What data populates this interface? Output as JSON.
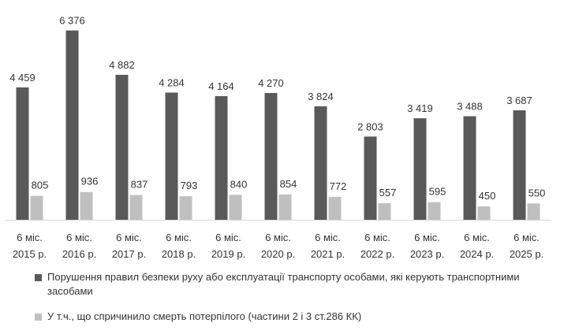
{
  "chart_data": {
    "type": "bar",
    "categories": [
      "6 міс. 2015 р.",
      "6 міс. 2016 р.",
      "6 міс. 2017 р.",
      "6 міс. 2018 р.",
      "6 міс. 2019 р.",
      "6 міс. 2020 р.",
      "6 міс. 2021 р.",
      "6 міс. 2022 р.",
      "6 міс. 2023 р.",
      "6 міс. 2024 р.",
      "6 міс. 2025 р."
    ],
    "category_lines": [
      [
        "6 міс.",
        "2015 р."
      ],
      [
        "6 міс.",
        "2016 р."
      ],
      [
        "6 міс.",
        "2017 р."
      ],
      [
        "6 міс.",
        "2018 р."
      ],
      [
        "6 міс.",
        "2019 р."
      ],
      [
        "6 міс.",
        "2020 р."
      ],
      [
        "6 міс.",
        "2021 р."
      ],
      [
        "6 міс.",
        "2022 р."
      ],
      [
        "6 міс.",
        "2023 р."
      ],
      [
        "6 міс.",
        "2024 р."
      ],
      [
        "6 міс.",
        "2025 р."
      ]
    ],
    "series": [
      {
        "name": "Порушення  правил безпеки руху або експлуатації транспорту особами, які керують транспортними засобами",
        "values": [
          4459,
          6376,
          4882,
          4284,
          4164,
          4270,
          3824,
          2803,
          3419,
          3488,
          3687
        ],
        "labels": [
          "4 459",
          "6 376",
          "4 882",
          "4 284",
          "4 164",
          "4 270",
          "3 824",
          "2 803",
          "3 419",
          "3 488",
          "3 687"
        ],
        "color": "#595959"
      },
      {
        "name": "У т.ч.,  що спричинило смерть потерпілого (частини 2 і 3 ст.286 КК)",
        "values": [
          805,
          936,
          837,
          793,
          840,
          854,
          772,
          557,
          595,
          450,
          550
        ],
        "labels": [
          "805",
          "936",
          "837",
          "793",
          "840",
          "854",
          "772",
          "557",
          "595",
          "450",
          "550"
        ],
        "color": "#bfbfbf"
      }
    ],
    "ylim": [
      0,
      6500
    ],
    "grid": false,
    "legend": "bottom",
    "axis_color": "#d9d9d9",
    "text_color": "#333333"
  }
}
